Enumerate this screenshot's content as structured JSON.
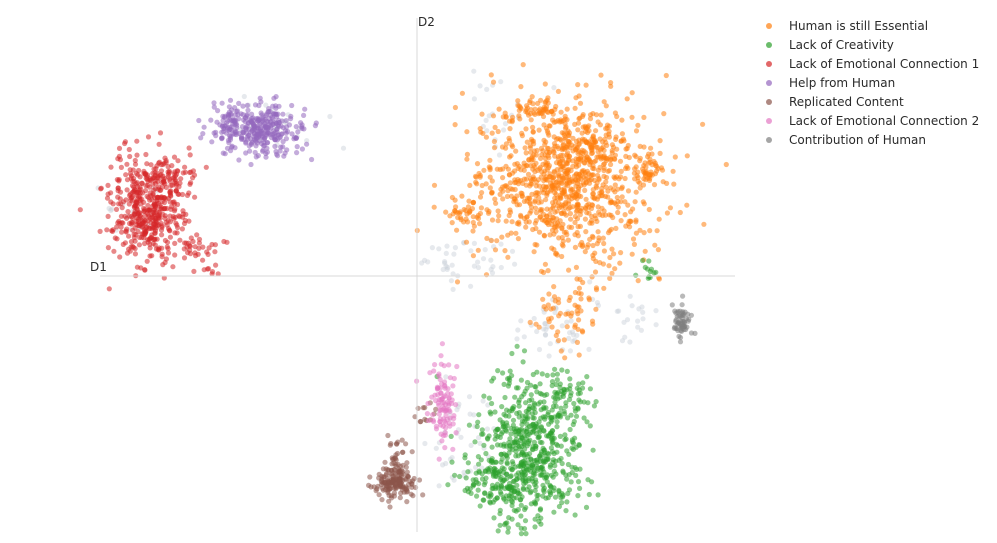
{
  "chart_data": {
    "type": "scatter",
    "title": "",
    "xlabel": "D1",
    "ylabel": "D2",
    "xlim": [
      -100,
      100
    ],
    "ylim": [
      -100,
      100
    ],
    "grid": false,
    "legend_position": "top-right",
    "series": [
      {
        "name": "Human is still Essential",
        "color": "#ff7f0e",
        "clusters": [
          {
            "cx": 46,
            "cy": 35,
            "sx": 14,
            "sy": 16,
            "n": 900
          },
          {
            "cx": 38,
            "cy": 65,
            "sx": 4,
            "sy": 2,
            "n": 40
          },
          {
            "cx": 15,
            "cy": 24,
            "sx": 4,
            "sy": 4,
            "n": 40
          },
          {
            "cx": 55,
            "cy": 48,
            "sx": 6,
            "sy": 5,
            "n": 120
          },
          {
            "cx": 73,
            "cy": 40,
            "sx": 3,
            "sy": 3,
            "n": 40
          },
          {
            "cx": 47,
            "cy": -14,
            "sx": 5,
            "sy": 7,
            "n": 60
          }
        ]
      },
      {
        "name": "Lack of Creativity",
        "color": "#2ca02c",
        "clusters": [
          {
            "cx": 35,
            "cy": -68,
            "sx": 8,
            "sy": 14,
            "n": 550
          },
          {
            "cx": 28,
            "cy": -80,
            "sx": 9,
            "sy": 6,
            "n": 120
          },
          {
            "cx": 45,
            "cy": -47,
            "sx": 6,
            "sy": 5,
            "n": 60
          },
          {
            "cx": 72,
            "cy": 1,
            "sx": 2,
            "sy": 2,
            "n": 12
          }
        ]
      },
      {
        "name": "Lack of Emotional Connection 1",
        "color": "#d62728",
        "clusters": [
          {
            "cx": -85,
            "cy": 25,
            "sx": 6,
            "sy": 10,
            "n": 450
          },
          {
            "cx": -78,
            "cy": 38,
            "sx": 5,
            "sy": 4,
            "n": 60
          },
          {
            "cx": -69,
            "cy": 10,
            "sx": 3,
            "sy": 3,
            "n": 30
          },
          {
            "cx": -65,
            "cy": 1,
            "sx": 2,
            "sy": 1,
            "n": 8
          }
        ]
      },
      {
        "name": "Help from Human",
        "color": "#9467bd",
        "clusters": [
          {
            "cx": -50,
            "cy": 57,
            "sx": 7,
            "sy": 5,
            "n": 320
          },
          {
            "cx": -59,
            "cy": 60,
            "sx": 3,
            "sy": 3,
            "n": 30
          }
        ]
      },
      {
        "name": "Replicated Content",
        "color": "#8c564b",
        "clusters": [
          {
            "cx": -7,
            "cy": -81,
            "sx": 3,
            "sy": 3,
            "n": 160
          },
          {
            "cx": -7,
            "cy": -70,
            "sx": 2,
            "sy": 5,
            "n": 30
          },
          {
            "cx": 3,
            "cy": -55,
            "sx": 2,
            "sy": 2,
            "n": 12
          }
        ]
      },
      {
        "name": "Lack of Emotional Connection 2",
        "color": "#e377c2",
        "clusters": [
          {
            "cx": 8,
            "cy": -51,
            "sx": 2,
            "sy": 9,
            "n": 100
          }
        ]
      },
      {
        "name": "Contribution of Human",
        "color": "#7f7f7f",
        "clusters": [
          {
            "cx": 83,
            "cy": -18,
            "sx": 1.5,
            "sy": 3,
            "n": 60
          }
        ]
      }
    ],
    "background_points": {
      "color": "#c7ced6",
      "clusters": [
        {
          "cx": 15,
          "cy": 6,
          "sx": 8,
          "sy": 6,
          "n": 40
        },
        {
          "cx": 44,
          "cy": -22,
          "sx": 8,
          "sy": 6,
          "n": 40
        },
        {
          "cx": 25,
          "cy": 63,
          "sx": 8,
          "sy": 8,
          "n": 20
        },
        {
          "cx": 15,
          "cy": -60,
          "sx": 6,
          "sy": 12,
          "n": 40
        },
        {
          "cx": -90,
          "cy": 25,
          "sx": 6,
          "sy": 6,
          "n": 20
        },
        {
          "cx": -45,
          "cy": 57,
          "sx": 8,
          "sy": 6,
          "n": 20
        },
        {
          "cx": 66,
          "cy": -15,
          "sx": 6,
          "sy": 4,
          "n": 20
        }
      ]
    }
  }
}
